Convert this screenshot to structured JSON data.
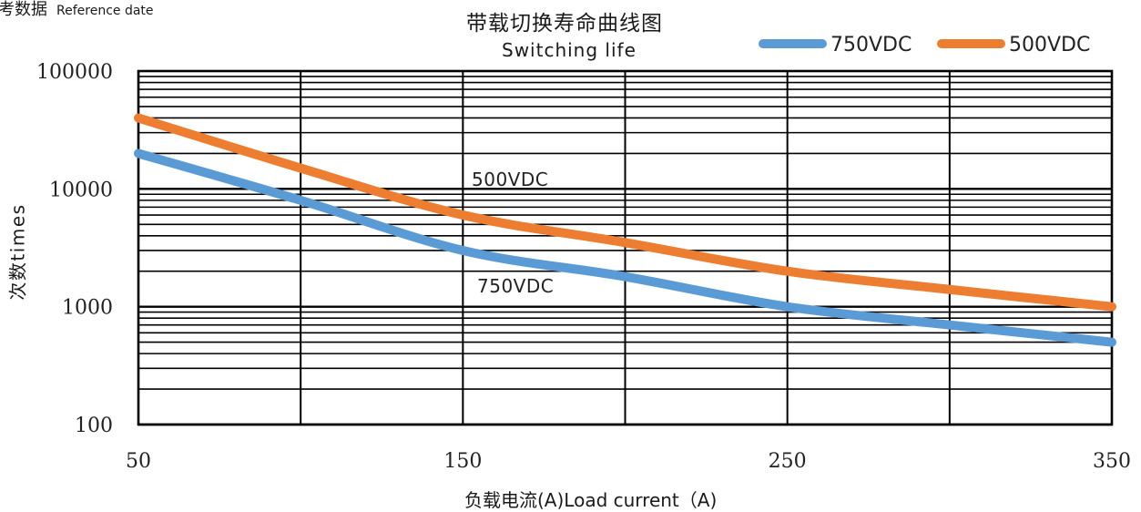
{
  "header": {
    "ref_label_zh": "考数据",
    "ref_label_en": "Reference date"
  },
  "chart_data": {
    "type": "line",
    "title": "带载切换寿命曲线图",
    "subtitle": "Switching life",
    "xlabel": "负载电流(A)Load current（A)",
    "ylabel": "次数times",
    "x_ticks": [
      "50",
      "150",
      "250",
      "350"
    ],
    "y_ticks": [
      "100",
      "1000",
      "10000",
      "100000"
    ],
    "xlim": [
      50,
      350
    ],
    "ylim": [
      100,
      100000
    ],
    "y_scale": "log",
    "grid": true,
    "legend_position": "top-right",
    "series": [
      {
        "name": "750VDC",
        "color": "#5b9bd5",
        "x": [
          50,
          100,
          150,
          200,
          250,
          300,
          350
        ],
        "y": [
          20000,
          8000,
          3000,
          1800,
          1000,
          700,
          500
        ]
      },
      {
        "name": "500VDC",
        "color": "#ed7d31",
        "x": [
          50,
          100,
          150,
          200,
          250,
          300,
          350
        ],
        "y": [
          40000,
          15000,
          6000,
          3500,
          2000,
          1400,
          1000
        ]
      }
    ],
    "annotations": [
      {
        "text": "500VDC",
        "series": "500VDC"
      },
      {
        "text": "750VDC",
        "series": "750VDC"
      }
    ]
  }
}
